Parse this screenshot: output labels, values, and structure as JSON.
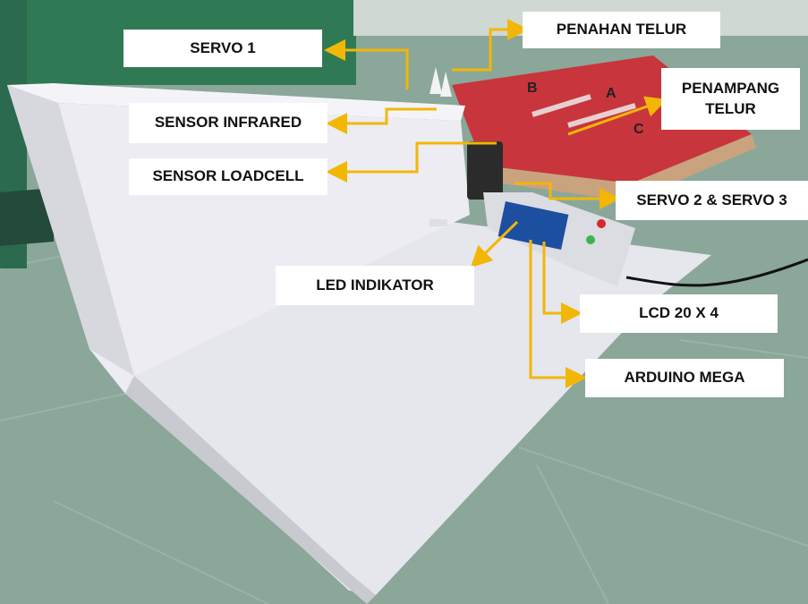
{
  "labels": {
    "servo_1": "SERVO 1",
    "penahan_telur": "PENAHAN TELUR",
    "penampang_telur_line1": "PENAMPANG",
    "penampang_telur_line2": "TELUR",
    "sensor_infrared": "SENSOR INFRARED",
    "sensor_loadcell": "SENSOR LOADCELL",
    "servo_2_3": "SERVO 2 & SERVO 3",
    "led_indikator": "LED INDIKATOR",
    "lcd": "LCD 20 X 4",
    "arduino_mega": "ARDUINO MEGA"
  },
  "tray_marks": {
    "a": "A",
    "b": "B",
    "c": "C"
  },
  "colors": {
    "arrow": "#f2b705",
    "label_bg": "#ffffff",
    "tray_red": "#c8353d",
    "board_white": "#e9e9ef",
    "tile_green": "#8aa79a",
    "wall_green": "#2f7a55"
  }
}
